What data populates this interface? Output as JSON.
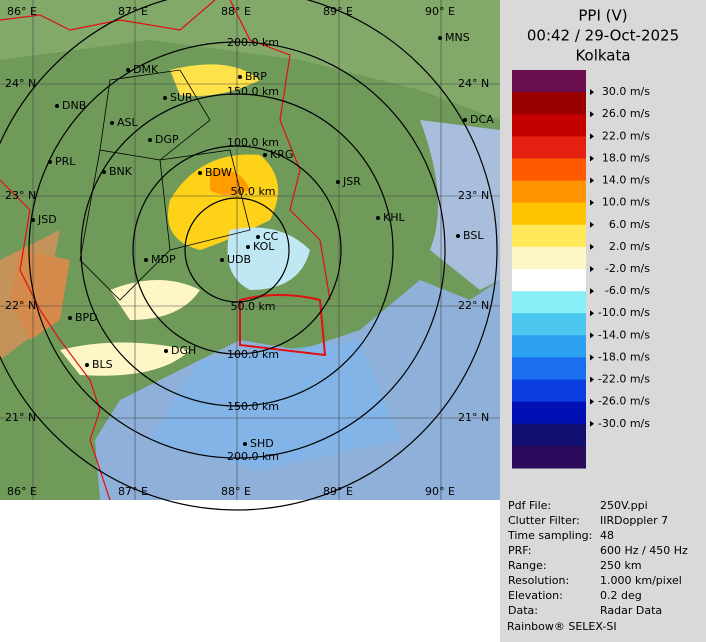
{
  "header": {
    "title": "PPI (V)",
    "time": "00:42 / 29-Oct-2025",
    "station": "Kolkata"
  },
  "legend": {
    "colors": [
      "#6a0f4e",
      "#9b0000",
      "#c40000",
      "#e62010",
      "#ff5a00",
      "#ff9400",
      "#ffc400",
      "#ffe85a",
      "#fff6c8",
      "#ffffff",
      "#86eef4",
      "#4cc8f0",
      "#2ea0f0",
      "#1a6ef0",
      "#0a3ee0",
      "#0010b4",
      "#101070",
      "#2a0a5a"
    ],
    "labels": [
      "30.0 m/s",
      "26.0 m/s",
      "22.0 m/s",
      "18.0 m/s",
      "14.0 m/s",
      "10.0 m/s",
      "6.0 m/s",
      "2.0 m/s",
      "-2.0 m/s",
      "-6.0 m/s",
      "-10.0 m/s",
      "-14.0 m/s",
      "-18.0 m/s",
      "-22.0 m/s",
      "-26.0 m/s",
      "-30.0 m/s"
    ]
  },
  "map": {
    "longitude_labels": [
      "86° E",
      "87° E",
      "88° E",
      "89° E",
      "90° E"
    ],
    "latitude_labels": [
      "24° N",
      "23° N",
      "22° N",
      "21° N"
    ],
    "range_labels": [
      "200.0 km",
      "150.0 km",
      "100.0 km",
      "50.0 km",
      "50.0 km",
      "100.0 km",
      "150.0 km",
      "200.0 km"
    ],
    "cities": [
      "MNS",
      "DMK",
      "BRP",
      "SUR",
      "DNB",
      "ASL",
      "DCA",
      "DGP",
      "KRG",
      "PRL",
      "BNK",
      "BDW",
      "JSR",
      "KHL",
      "JSD",
      "CC",
      "KOL",
      "BSL",
      "MDP",
      "UDB",
      "BPD",
      "DGH",
      "BLS",
      "SHD"
    ]
  },
  "info": {
    "rows": [
      [
        "Pdf File:",
        "250V.ppi"
      ],
      [
        "Clutter Filter:",
        "IIRDoppler 7"
      ],
      [
        "Time sampling:",
        "48"
      ],
      [
        "PRF:",
        "600 Hz / 450 Hz"
      ],
      [
        "Range:",
        "250 km"
      ],
      [
        "Resolution:",
        "1.000 km/pixel"
      ],
      [
        "Elevation:",
        "0.2 deg"
      ],
      [
        "Data:",
        "Radar Data"
      ]
    ],
    "footer": "Rainbow® SELEX-SI"
  }
}
